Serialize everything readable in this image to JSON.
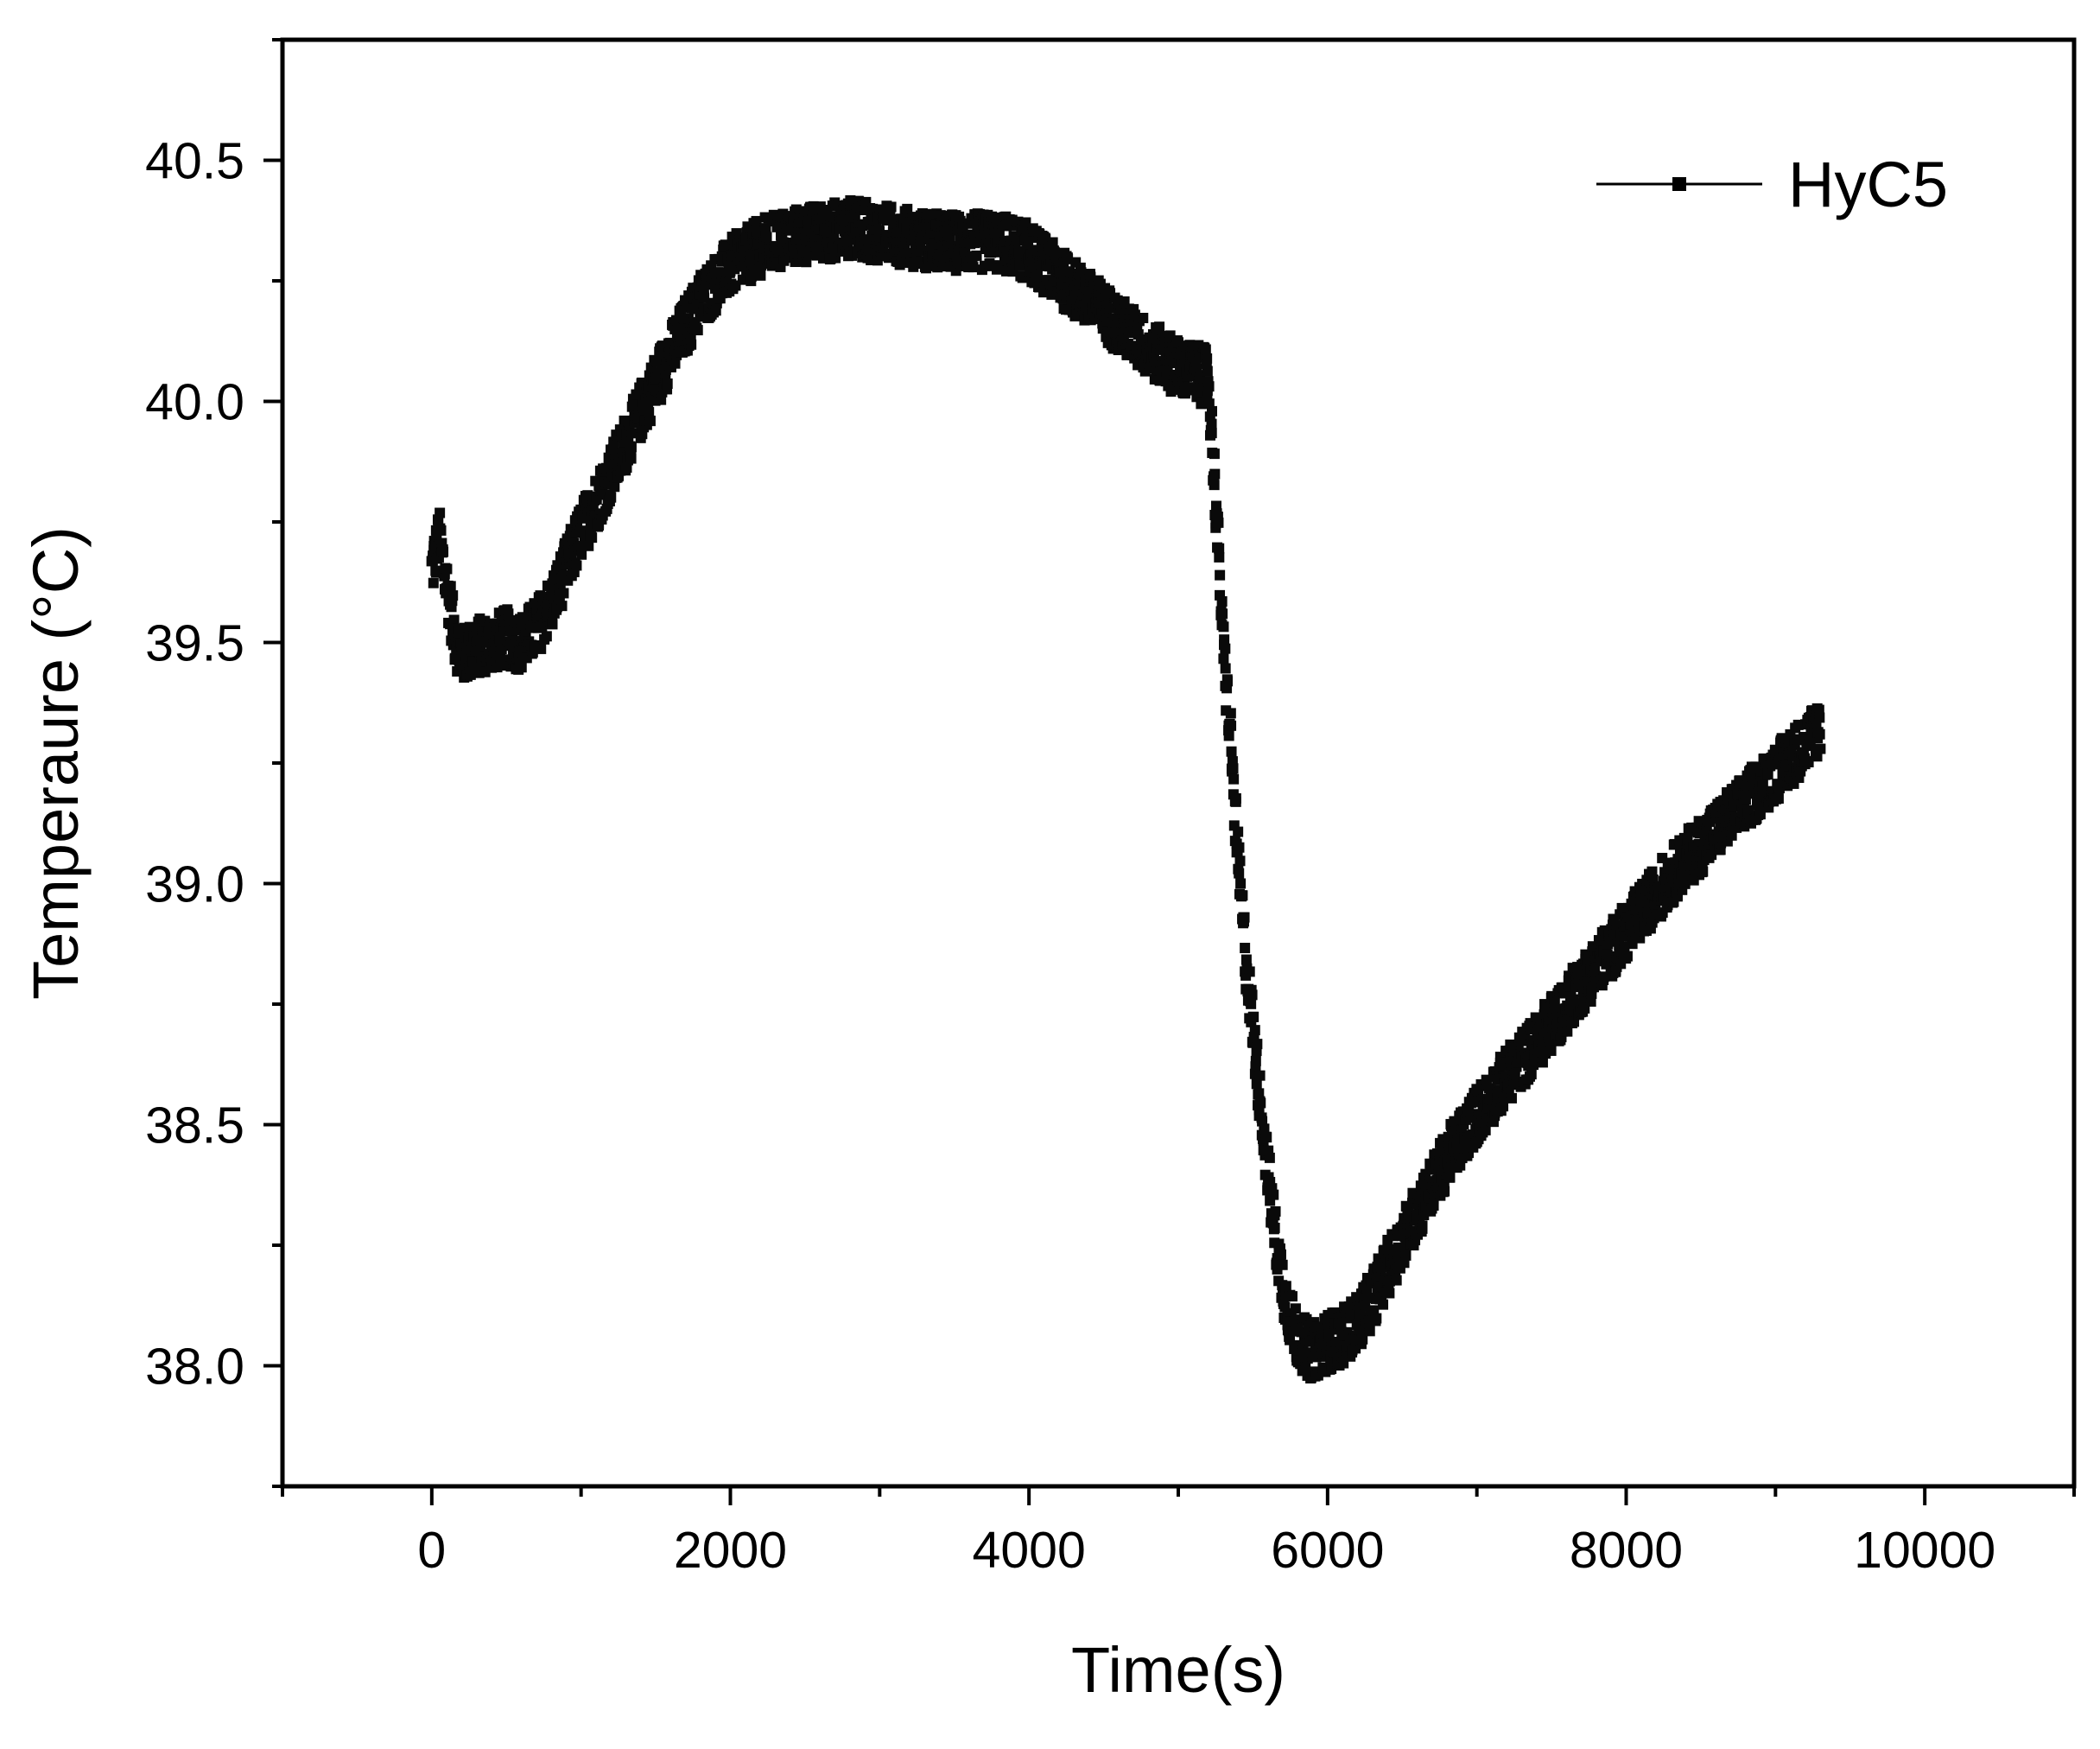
{
  "chart_data": {
    "type": "scatter",
    "title": "",
    "xlabel": "Time(s)",
    "ylabel": "Temperaure (°C)",
    "xlim": [
      -1000,
      11000
    ],
    "ylim": [
      37.75,
      40.75
    ],
    "x_ticks": [
      0,
      2000,
      4000,
      6000,
      8000,
      10000
    ],
    "x_tick_labels": [
      "0",
      "2000",
      "4000",
      "6000",
      "8000",
      "10000"
    ],
    "y_ticks": [
      38.0,
      38.5,
      39.0,
      39.5,
      40.0,
      40.5
    ],
    "y_tick_labels": [
      "38.0",
      "38.5",
      "39.0",
      "39.5",
      "40.0",
      "40.5"
    ],
    "grid": false,
    "legend_position": "top-right",
    "series": [
      {
        "name": "HyC5",
        "color": "#0a0a0a",
        "marker": "square",
        "noise_band": 0.06,
        "x": [
          0,
          50,
          100,
          150,
          200,
          300,
          400,
          500,
          600,
          700,
          800,
          1000,
          1200,
          1400,
          1600,
          1800,
          2000,
          2200,
          2400,
          2600,
          2800,
          3000,
          3200,
          3400,
          3600,
          3800,
          4000,
          4200,
          4400,
          4600,
          4800,
          5000,
          5100,
          5200,
          5250,
          5300,
          5350,
          5400,
          5450,
          5500,
          5550,
          5600,
          5650,
          5700,
          5750,
          5800,
          5850,
          5900,
          5950,
          6000,
          6100,
          6200,
          6300,
          6400,
          6600,
          6800,
          7000,
          7200,
          7400,
          7600,
          7800,
          8000,
          8200,
          8400,
          8600,
          8800,
          9000,
          9200,
          9300
        ],
        "y": [
          39.65,
          39.72,
          39.62,
          39.52,
          39.47,
          39.49,
          39.5,
          39.51,
          39.5,
          39.53,
          39.58,
          39.73,
          39.85,
          39.98,
          40.1,
          40.21,
          40.28,
          40.32,
          40.34,
          40.35,
          40.36,
          40.35,
          40.34,
          40.33,
          40.33,
          40.33,
          40.31,
          40.26,
          40.21,
          40.16,
          40.11,
          40.07,
          40.06,
          40.05,
          39.8,
          39.5,
          39.3,
          39.05,
          38.85,
          38.7,
          38.55,
          38.4,
          38.27,
          38.17,
          38.1,
          38.06,
          38.04,
          38.03,
          38.04,
          38.05,
          38.06,
          38.09,
          38.14,
          38.2,
          38.32,
          38.43,
          38.52,
          38.6,
          38.67,
          38.75,
          38.83,
          38.9,
          38.98,
          39.05,
          39.11,
          39.17,
          39.23,
          39.29,
          39.33
        ]
      }
    ]
  }
}
